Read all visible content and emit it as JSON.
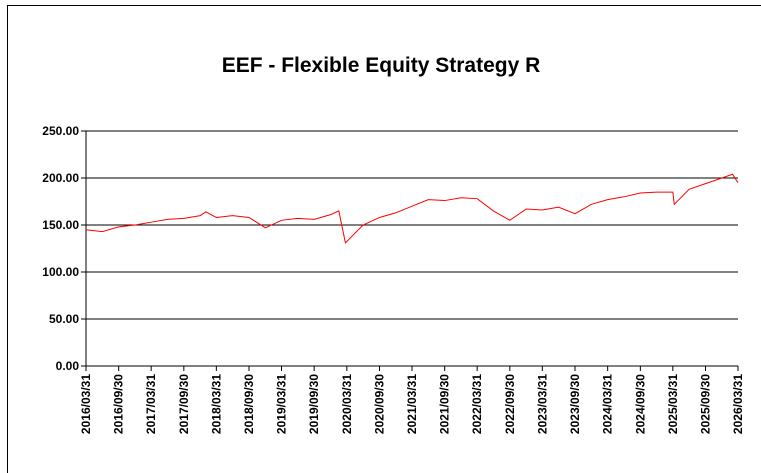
{
  "chart_data": {
    "type": "line",
    "title": "EEF - Flexible Equity Strategy R",
    "x": [
      "2016/03/31",
      "2016/06/30",
      "2016/09/30",
      "2016/12/31",
      "2017/03/31",
      "2017/06/30",
      "2017/09/30",
      "2017/12/31",
      "2018/01/31",
      "2018/03/31",
      "2018/06/30",
      "2018/09/30",
      "2018/12/31",
      "2019/03/31",
      "2019/06/30",
      "2019/09/30",
      "2019/12/31",
      "2020/02/15",
      "2020/03/23",
      "2020/06/30",
      "2020/09/30",
      "2020/12/31",
      "2021/03/31",
      "2021/06/30",
      "2021/09/30",
      "2021/12/31",
      "2022/03/31",
      "2022/06/30",
      "2022/09/30",
      "2022/12/31",
      "2023/03/31",
      "2023/06/30",
      "2023/09/30",
      "2023/12/31",
      "2024/03/31",
      "2024/06/30",
      "2024/09/30",
      "2024/12/31",
      "2025/03/31",
      "2025/04/08",
      "2025/06/30",
      "2025/09/30",
      "2025/12/31",
      "2026/02/28",
      "2026/03/31"
    ],
    "series": [
      {
        "name": "EEF - Flexible Equity Strategy R",
        "color": "#ff0000",
        "values": [
          145,
          143,
          148,
          150,
          153,
          156,
          157,
          160,
          164,
          158,
          160,
          158,
          147,
          155,
          157,
          156,
          161,
          165,
          131,
          150,
          158,
          163,
          170,
          177,
          176,
          179,
          178,
          165,
          155,
          167,
          166,
          169,
          162,
          172,
          177,
          180,
          184,
          185,
          185,
          172,
          188,
          194,
          200,
          204,
          195
        ]
      }
    ],
    "xlim": [
      "2016/03/31",
      "2026/03/31"
    ],
    "xticks": [
      "2016/03/31",
      "2016/09/30",
      "2017/03/31",
      "2017/09/30",
      "2018/03/31",
      "2018/09/30",
      "2019/03/31",
      "2019/09/30",
      "2020/03/31",
      "2020/09/30",
      "2021/03/31",
      "2021/09/30",
      "2022/03/31",
      "2022/09/30",
      "2023/03/31",
      "2023/09/30",
      "2024/03/31",
      "2024/09/30",
      "2025/03/31",
      "2025/09/30",
      "2026/03/31"
    ],
    "ylim": [
      0,
      250
    ],
    "yticks": [
      {
        "value": 0,
        "label": "0.00"
      },
      {
        "value": 50,
        "label": "50.00"
      },
      {
        "value": 100,
        "label": "100.00"
      },
      {
        "value": 150,
        "label": "150.00"
      },
      {
        "value": 200,
        "label": "200.00"
      },
      {
        "value": 250,
        "label": "250.00"
      }
    ],
    "grid": true
  }
}
